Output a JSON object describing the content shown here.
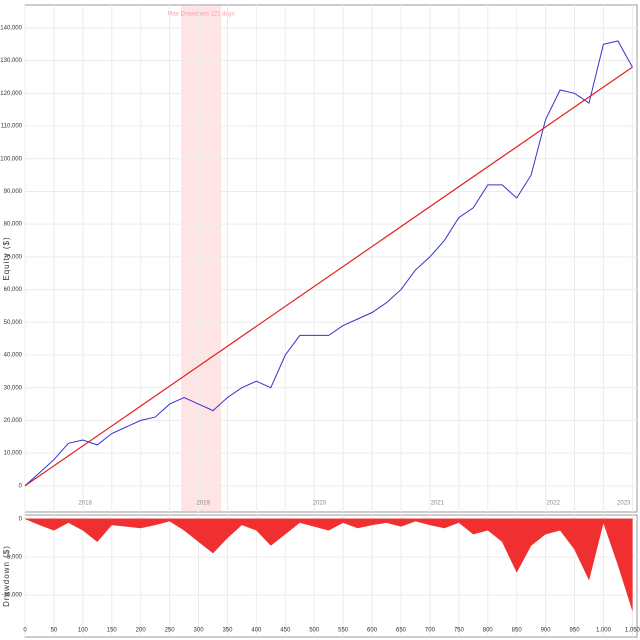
{
  "chart_data": [
    {
      "type": "line",
      "y_label": "Equity ($)",
      "x": [
        0,
        25,
        50,
        75,
        100,
        125,
        150,
        175,
        200,
        225,
        250,
        275,
        300,
        325,
        350,
        375,
        400,
        425,
        450,
        475,
        500,
        525,
        550,
        575,
        600,
        625,
        650,
        675,
        700,
        725,
        750,
        775,
        800,
        825,
        850,
        875,
        900,
        925,
        950,
        975,
        1000,
        1025,
        1050
      ],
      "series": [
        {
          "color": "#3333cc",
          "values": [
            0,
            4000,
            8000,
            13000,
            14000,
            12500,
            16000,
            18000,
            20000,
            21000,
            25000,
            27000,
            25000,
            23000,
            27000,
            30000,
            32000,
            30000,
            40000,
            46000,
            46000,
            46000,
            49000,
            51000,
            53000,
            56000,
            60000,
            66000,
            70000,
            75000,
            82000,
            85000,
            92000,
            92000,
            88000,
            95000,
            112000,
            121000,
            120000,
            117000,
            135000,
            136000,
            128000
          ]
        },
        {
          "color": "#e02020",
          "x": [
            0,
            1050
          ],
          "values": [
            0,
            128000
          ]
        }
      ],
      "highlight": {
        "label": "Max Drawdown 121 days",
        "x_range": [
          270,
          339
        ],
        "color": "#ffe4e6"
      },
      "year_labels": {
        "labels": [
          "2018",
          "2019",
          "2020",
          "2021",
          "2022",
          "2023"
        ],
        "x": [
          104,
          308,
          509,
          713,
          913,
          1035
        ]
      },
      "xlim": [
        0,
        1058
      ],
      "ylim": [
        -8000,
        147000
      ],
      "yticks": [
        0,
        {
          "value": 10000,
          "label": "10,000"
        },
        {
          "value": 20000,
          "label": "20,000"
        },
        {
          "value": 30000,
          "label": "30,000"
        },
        {
          "value": 40000,
          "label": "40,000"
        },
        {
          "value": 50000,
          "label": "50,000"
        },
        {
          "value": 60000,
          "label": "60,000"
        },
        {
          "value": 70000,
          "label": "70,000"
        },
        {
          "value": 80000,
          "label": "80,000"
        },
        {
          "value": 90000,
          "label": "90,000"
        },
        {
          "value": 100000,
          "label": "100,000"
        },
        {
          "value": 110000,
          "label": "110,000"
        },
        {
          "value": 120000,
          "label": "120,000"
        },
        {
          "value": 130000,
          "label": "130,000"
        },
        {
          "value": 140000,
          "label": "140,000"
        }
      ],
      "grid": true
    },
    {
      "type": "area",
      "y_label": "Drawdown ($)",
      "x": [
        0,
        25,
        50,
        75,
        100,
        125,
        150,
        175,
        200,
        225,
        250,
        275,
        300,
        325,
        350,
        375,
        400,
        425,
        450,
        475,
        500,
        525,
        550,
        575,
        600,
        625,
        650,
        675,
        700,
        725,
        750,
        775,
        800,
        825,
        850,
        875,
        900,
        925,
        950,
        975,
        1000,
        1025,
        1050
      ],
      "series": [
        {
          "color": "#f03030",
          "values": [
            0,
            -800,
            -1500,
            -500,
            -1500,
            -3000,
            -800,
            -1000,
            -1200,
            -800,
            -300,
            -1500,
            -3000,
            -4500,
            -2500,
            -800,
            -1500,
            -3500,
            -2000,
            -500,
            -1000,
            -1500,
            -500,
            -1200,
            -800,
            -500,
            -1000,
            -300,
            -800,
            -1200,
            -500,
            -2000,
            -1500,
            -3000,
            -7000,
            -3500,
            -2000,
            -1500,
            -4000,
            -8000,
            -500,
            -6000,
            -12000
          ]
        }
      ],
      "xlim": [
        0,
        1058
      ],
      "ylim": [
        -15500,
        500
      ],
      "yticks": [
        0,
        {
          "value": -5000,
          "label": "-5,000"
        },
        {
          "value": -10000,
          "label": "-10,000"
        }
      ],
      "xticks": [
        0,
        50,
        100,
        150,
        200,
        250,
        300,
        350,
        400,
        450,
        500,
        550,
        600,
        650,
        700,
        750,
        800,
        850,
        900,
        950,
        {
          "value": 1000,
          "label": "1,000"
        },
        {
          "value": 1050,
          "label": "1,050"
        }
      ],
      "grid": true
    }
  ]
}
